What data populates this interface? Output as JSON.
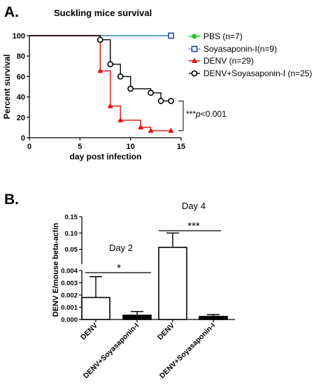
{
  "chart_data": [
    {
      "type": "line",
      "panel_label": "A.",
      "title": "Suckling mice survival",
      "xlabel": "day post infection",
      "ylabel": "Percent survival",
      "xlim": [
        0,
        15
      ],
      "ylim": [
        0,
        100
      ],
      "xticks": [
        "0",
        "5",
        "10",
        "15"
      ],
      "yticks": [
        "0",
        "20",
        "40",
        "60",
        "80",
        "100"
      ],
      "legend_position": "right",
      "series": [
        {
          "name": "PBS (n=7)",
          "color": "#22c322",
          "marker": "filled-circle",
          "marker_color": "#22c322",
          "x": [
            0,
            14
          ],
          "y": [
            100,
            100
          ],
          "markers": [
            [
              14,
              100
            ]
          ]
        },
        {
          "name": "Soyasaponin-I(n=9)",
          "color": "#4f8fd8",
          "marker": "open-square",
          "marker_color": "#1f4ea0",
          "x": [
            0,
            14
          ],
          "y": [
            100,
            100
          ],
          "markers": [
            [
              14,
              100
            ]
          ]
        },
        {
          "name": "DENV (n=29)",
          "color": "#e01010",
          "marker": "filled-triangle",
          "marker_color": "#e01010",
          "x": [
            0,
            7,
            7,
            8,
            8,
            9,
            9,
            11,
            11,
            12,
            12,
            14
          ],
          "y": [
            100,
            100,
            65.5,
            65.5,
            31,
            31,
            17.2,
            17.2,
            10.3,
            10.3,
            6.9,
            6.9
          ],
          "markers": [
            [
              7,
              65.5
            ],
            [
              8,
              31
            ],
            [
              9,
              17.2
            ],
            [
              11,
              10.3
            ],
            [
              12,
              6.9
            ],
            [
              14,
              6.9
            ]
          ]
        },
        {
          "name": "DENV+Soyasaponin-I (n=25)",
          "color": "#000000",
          "marker": "open-circle",
          "marker_color": "#000000",
          "x": [
            0,
            7,
            7,
            8,
            8,
            9,
            9,
            10,
            10,
            12,
            12,
            13,
            13,
            14
          ],
          "y": [
            100,
            100,
            96,
            96,
            72,
            72,
            60,
            60,
            48,
            48,
            44,
            44,
            36,
            36
          ],
          "markers": [
            [
              7,
              96
            ],
            [
              8,
              72
            ],
            [
              9,
              60
            ],
            [
              10,
              48
            ],
            [
              12,
              44
            ],
            [
              13,
              36
            ],
            [
              14,
              36
            ]
          ]
        }
      ],
      "annotation": {
        "stars": "***",
        "p": "p",
        "rest": "<0.001"
      }
    },
    {
      "type": "bar",
      "panel_label": "B.",
      "ylabel": "DENV E/mouse beta-actin",
      "categories": [
        "DENV",
        "DENV+Soyasaponin-I",
        "DENV",
        "DENV+Soyasaponin-I"
      ],
      "values": [
        0.0018,
        0.00035,
        0.056,
        0.00025
      ],
      "errors": [
        0.0017,
        0.0003,
        0.044,
        0.00015
      ],
      "bar_fill": [
        "#ffffff",
        "#000000",
        "#ffffff",
        "#000000"
      ],
      "group_labels": [
        "Day 2",
        "Day 4"
      ],
      "significance": [
        "*",
        "***"
      ],
      "y_axis_broken": true,
      "lower_range": [
        0,
        0.004
      ],
      "upper_range": [
        0.004,
        0.15
      ],
      "lower_ticks": [
        "0.000",
        "0.001",
        "0.002",
        "0.003",
        "0.004"
      ],
      "upper_ticks": [
        "0.05",
        "0.10",
        "0.15"
      ]
    }
  ]
}
